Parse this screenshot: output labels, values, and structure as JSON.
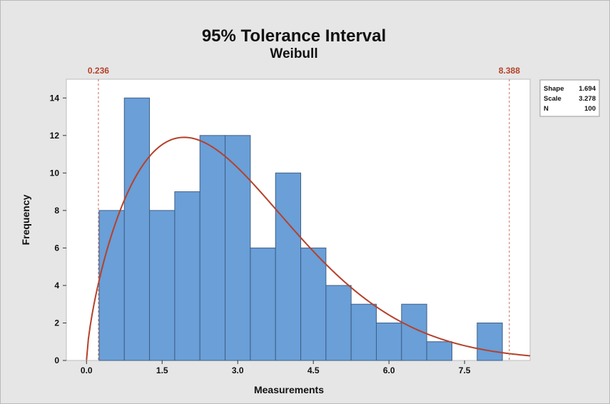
{
  "chart_data": {
    "type": "bar",
    "title": "95% Tolerance Interval",
    "subtitle": "Weibull",
    "xlabel": "Measurements",
    "ylabel": "Frequency",
    "xlim": [
      -0.4,
      8.8
    ],
    "ylim": [
      0,
      15
    ],
    "x_ticks": [
      "0.0",
      "1.5",
      "3.0",
      "4.5",
      "6.0",
      "7.5"
    ],
    "y_ticks": [
      "0",
      "2",
      "4",
      "6",
      "8",
      "10",
      "12",
      "14"
    ],
    "bin_width": 0.5,
    "bins": [
      {
        "start": 0.25,
        "value": 8
      },
      {
        "start": 0.75,
        "value": 14
      },
      {
        "start": 1.25,
        "value": 8
      },
      {
        "start": 1.75,
        "value": 9
      },
      {
        "start": 2.25,
        "value": 12
      },
      {
        "start": 2.75,
        "value": 12
      },
      {
        "start": 3.25,
        "value": 6
      },
      {
        "start": 3.75,
        "value": 10
      },
      {
        "start": 4.25,
        "value": 6
      },
      {
        "start": 4.75,
        "value": 4
      },
      {
        "start": 5.25,
        "value": 3
      },
      {
        "start": 5.75,
        "value": 2
      },
      {
        "start": 6.25,
        "value": 3
      },
      {
        "start": 6.75,
        "value": 1
      },
      {
        "start": 7.25,
        "value": 0
      },
      {
        "start": 7.75,
        "value": 2
      }
    ],
    "fit": {
      "distribution": "Weibull",
      "shape": 1.694,
      "scale": 3.278,
      "n": 100
    },
    "tolerance_interval": {
      "lower": 0.236,
      "upper": 8.388,
      "lower_label": "0.236",
      "upper_label": "8.388"
    },
    "legend": {
      "position": "top-right",
      "rows": [
        {
          "label": "Shape",
          "value": "1.694"
        },
        {
          "label": "Scale",
          "value": "3.278"
        },
        {
          "label": "N",
          "value": "100"
        }
      ]
    },
    "grid": false,
    "colors": {
      "bar": "#6a9fd8",
      "bar_edge": "#3f5f86",
      "fit_line": "#b5412a",
      "background": "#e6e6e6",
      "plot_area": "#ffffff"
    }
  }
}
